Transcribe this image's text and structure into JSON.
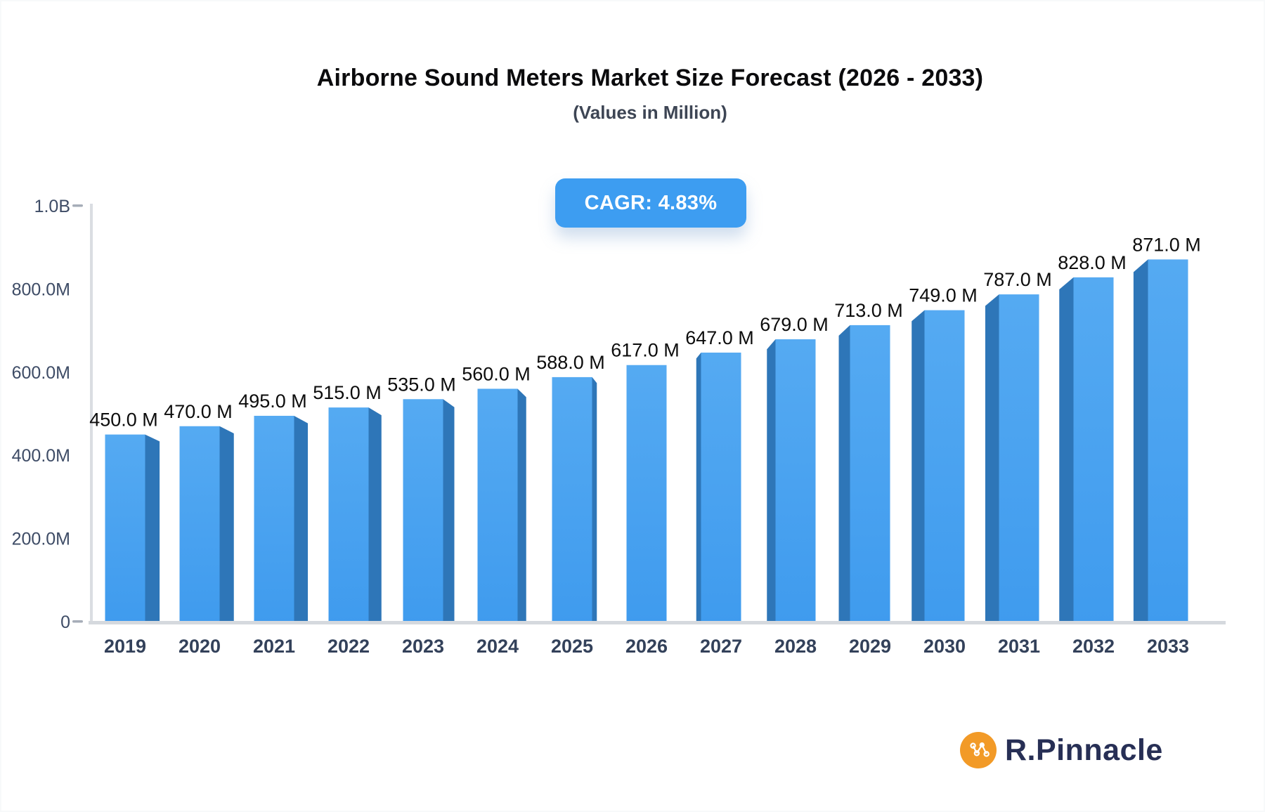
{
  "header": {
    "title": "Airborne Sound Meters Market Size Forecast (2026 - 2033)",
    "subtitle": "(Values in Million)",
    "cagr_badge": "CAGR: 4.83%"
  },
  "chart_data": {
    "type": "bar",
    "style": "3d-perspective-columns",
    "title": "Airborne Sound Meters Market Size Forecast (2026 - 2033)",
    "subtitle": "(Values in Million)",
    "cagr": "4.83%",
    "categories": [
      "2019",
      "2020",
      "2021",
      "2022",
      "2023",
      "2024",
      "2025",
      "2026",
      "2027",
      "2028",
      "2029",
      "2030",
      "2031",
      "2032",
      "2033"
    ],
    "values": [
      450,
      470,
      495,
      515,
      535,
      560,
      588,
      617,
      647,
      679,
      713,
      749,
      787,
      828,
      871
    ],
    "value_labels": [
      "450.0 M",
      "470.0 M",
      "495.0 M",
      "515.0 M",
      "535.0 M",
      "560.0 M",
      "588.0 M",
      "617.0 M",
      "647.0 M",
      "679.0 M",
      "713.0 M",
      "749.0 M",
      "787.0 M",
      "828.0 M",
      "871.0 M"
    ],
    "unit": "Million",
    "xlabel": "",
    "ylabel": "",
    "ylim_millions": [
      0,
      1000
    ],
    "grid": "off",
    "legend": "none",
    "y_axis_ticks": [
      {
        "label": "1.0B",
        "value": 1000
      },
      {
        "label": "800.0M",
        "value": 800
      },
      {
        "label": "600.0M",
        "value": 600
      },
      {
        "label": "400.0M",
        "value": 400
      },
      {
        "label": "200.0M",
        "value": 200
      },
      {
        "label": "0",
        "value": 0
      }
    ],
    "colors": {
      "bar_face_top": "#55aaf2",
      "bar_face_bottom": "#3f9bee",
      "bar_side": "#2e76b8",
      "axis_line": "#dadde2",
      "baseline": "#d5d9de",
      "tick_dash": "#a6adb8",
      "badge": "#3d9df1",
      "value_label": "#0c0c0c",
      "axis_label": "#3e4c66"
    }
  },
  "brand": {
    "name": "R.Pinnacle",
    "icon": "network-nodes-icon",
    "icon_color": "#f29a27",
    "text_color": "#272f55"
  }
}
